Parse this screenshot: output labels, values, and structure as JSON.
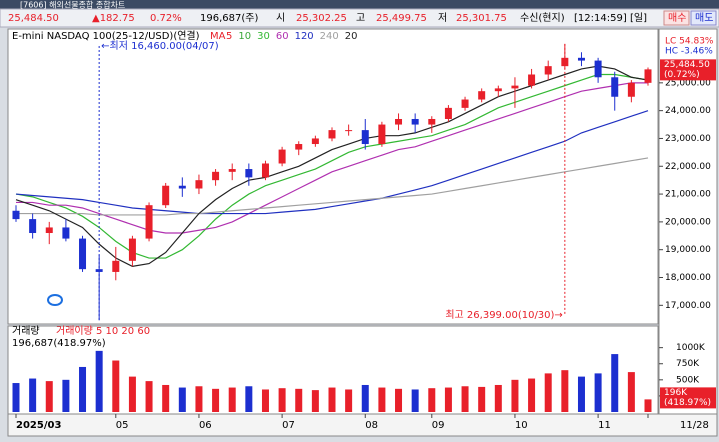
{
  "window_title": "[7606] 해외선물종합 종합차트",
  "header": {
    "price": "25,484.50",
    "change": "▲182.75",
    "change_pct": "0.72%",
    "volume": "196,687(주)",
    "open_label": "시",
    "open": "25,302.25",
    "high_label": "고",
    "high": "25,499.75",
    "low_label": "저",
    "low": "25,301.75",
    "feed": "수신(현지)",
    "time": "[12:14:59]",
    "period": "[일]",
    "buy": "매수",
    "sell": "매도"
  },
  "chart_data": [
    {
      "type": "candlestick",
      "title": "E-mini NASDAQ 100(25-12/USD)(연결)",
      "ma_label": "MA",
      "low_annotation": "←최저 16,460.00(04/07)",
      "high_annotation": "최고 26,399.00(10/30)→",
      "last_label": "25,484.50",
      "last_pct": "(0.72%)",
      "lc": "LC 54.83%",
      "hc": "HC -3.46%",
      "up_color": "#e8202a",
      "down_color": "#1c2fd0",
      "categories": [
        "2025/03",
        null,
        null,
        null,
        null,
        null,
        "05",
        null,
        null,
        null,
        null,
        "06",
        null,
        null,
        null,
        null,
        "07",
        null,
        null,
        null,
        null,
        "08",
        null,
        null,
        null,
        "09",
        null,
        null,
        null,
        null,
        "10",
        null,
        null,
        null,
        null,
        "11",
        null,
        null,
        "11/28"
      ],
      "open": [
        20400,
        20100,
        19600,
        19800,
        19400,
        18300,
        18200,
        18600,
        19400,
        20600,
        21300,
        21200,
        21500,
        21800,
        21900,
        21600,
        22100,
        22600,
        22800,
        23000,
        23300,
        23300,
        22800,
        23500,
        23700,
        23500,
        23700,
        24100,
        24400,
        24700,
        24800,
        24900,
        25300,
        25600,
        25900,
        25800,
        25200,
        24500,
        25000
      ],
      "high": [
        20600,
        20300,
        20000,
        20100,
        19500,
        18800,
        19100,
        19500,
        20700,
        21400,
        21600,
        21700,
        21900,
        22100,
        22100,
        22200,
        22700,
        22900,
        23100,
        23400,
        23500,
        23700,
        23600,
        23900,
        23900,
        23800,
        24200,
        24500,
        24800,
        24900,
        25200,
        25500,
        25800,
        26399,
        26100,
        25900,
        25400,
        25100,
        25550
      ],
      "low": [
        20000,
        19400,
        19200,
        19300,
        18200,
        16460,
        17900,
        18400,
        19300,
        20500,
        20900,
        21000,
        21300,
        21500,
        21300,
        21500,
        22000,
        22400,
        22700,
        22900,
        23100,
        22600,
        22700,
        23300,
        23200,
        23200,
        23600,
        24000,
        24300,
        24500,
        24100,
        24800,
        25100,
        25500,
        25600,
        25000,
        24000,
        24300,
        24900
      ],
      "close": [
        20100,
        19600,
        19800,
        19400,
        18300,
        18200,
        18600,
        19400,
        20600,
        21300,
        21200,
        21500,
        21800,
        21900,
        21600,
        22100,
        22600,
        22800,
        23000,
        23300,
        23300,
        22800,
        23500,
        23700,
        23500,
        23700,
        24100,
        24400,
        24700,
        24800,
        24900,
        25300,
        25600,
        25900,
        25800,
        25200,
        24500,
        25000,
        25484.5
      ],
      "series": [
        {
          "name": "5",
          "color": "#e8202a"
        },
        {
          "name": "10",
          "color": "#3aa83a"
        },
        {
          "name": "30",
          "color": "#33b833",
          "values": [
            21000,
            20900,
            20700,
            20500,
            20200,
            19800,
            19300,
            18900,
            18700,
            18700,
            19000,
            19500,
            20100,
            20600,
            21000,
            21300,
            21500,
            21700,
            21900,
            22200,
            22500,
            22700,
            22800,
            22900,
            23000,
            23100,
            23300,
            23500,
            23800,
            24100,
            24300,
            24500,
            24700,
            24900,
            25100,
            25300,
            25300,
            25200,
            25100
          ]
        },
        {
          "name": "60",
          "color": "#b030b0",
          "values": [
            20700,
            20700,
            20600,
            20600,
            20500,
            20300,
            20100,
            19900,
            19700,
            19600,
            19600,
            19700,
            19800,
            20000,
            20300,
            20600,
            20900,
            21200,
            21500,
            21800,
            22000,
            22200,
            22400,
            22600,
            22700,
            22900,
            23100,
            23300,
            23500,
            23700,
            23900,
            24100,
            24300,
            24500,
            24700,
            24800,
            24900,
            25000,
            25000
          ]
        },
        {
          "name": "120",
          "color": "#2030c0",
          "values": [
            21000,
            20950,
            20900,
            20850,
            20800,
            20700,
            20600,
            20500,
            20450,
            20400,
            20350,
            20300,
            20300,
            20300,
            20300,
            20300,
            20350,
            20400,
            20450,
            20550,
            20650,
            20750,
            20850,
            21000,
            21150,
            21300,
            21500,
            21700,
            21900,
            22100,
            22300,
            22500,
            22700,
            22900,
            23200,
            23400,
            23600,
            23800,
            24000
          ]
        },
        {
          "name": "240",
          "color": "#a0a0a0",
          "values": [
            20300,
            20300,
            20300,
            20300,
            20300,
            20250,
            20250,
            20250,
            20250,
            20250,
            20300,
            20300,
            20350,
            20400,
            20450,
            20500,
            20550,
            20600,
            20650,
            20700,
            20750,
            20800,
            20850,
            20900,
            20950,
            21000,
            21100,
            21200,
            21300,
            21400,
            21500,
            21600,
            21700,
            21800,
            21900,
            22000,
            22100,
            22200,
            22300
          ]
        },
        {
          "name": "20",
          "color": "#222222",
          "values": [
            20800,
            20600,
            20400,
            20100,
            19800,
            19200,
            18700,
            18400,
            18500,
            18900,
            19600,
            20300,
            20800,
            21200,
            21500,
            21600,
            21800,
            22000,
            22300,
            22600,
            22800,
            23000,
            23100,
            23100,
            23200,
            23400,
            23600,
            23900,
            24200,
            24500,
            24700,
            24900,
            25100,
            25300,
            25500,
            25600,
            25500,
            25200,
            25100
          ]
        }
      ],
      "ylim": [
        16400,
        26900
      ],
      "yticks": [
        {
          "value": 17000,
          "label": "17,000.00"
        },
        {
          "value": 18000,
          "label": "18,000.00"
        },
        {
          "value": 19000,
          "label": "19,000.00"
        },
        {
          "value": 20000,
          "label": "20,000.00"
        },
        {
          "value": 21000,
          "label": "21,000.00"
        },
        {
          "value": 22000,
          "label": "22,000.00"
        },
        {
          "value": 23000,
          "label": "23,000.00"
        },
        {
          "value": 24000,
          "label": "24,000.00"
        },
        {
          "value": 25000,
          "label": "25,000.00"
        }
      ]
    },
    {
      "type": "bar",
      "title": "거래량",
      "legend": "거래이량 5 10 20 60",
      "info": "196,687(418.97%)",
      "last_label": "196K",
      "last_pct": "(418.97%)",
      "values": [
        450,
        520,
        480,
        500,
        700,
        950,
        800,
        550,
        480,
        420,
        380,
        400,
        360,
        380,
        400,
        350,
        370,
        360,
        340,
        380,
        350,
        420,
        380,
        360,
        350,
        370,
        380,
        400,
        390,
        420,
        500,
        520,
        600,
        650,
        550,
        600,
        900,
        620,
        196
      ],
      "ylim": [
        0,
        1150
      ],
      "yticks": [
        {
          "value": 250,
          "label": "250K"
        },
        {
          "value": 500,
          "label": "500K"
        },
        {
          "value": 750,
          "label": "750K"
        },
        {
          "value": 1000,
          "label": "1000K"
        }
      ]
    }
  ]
}
